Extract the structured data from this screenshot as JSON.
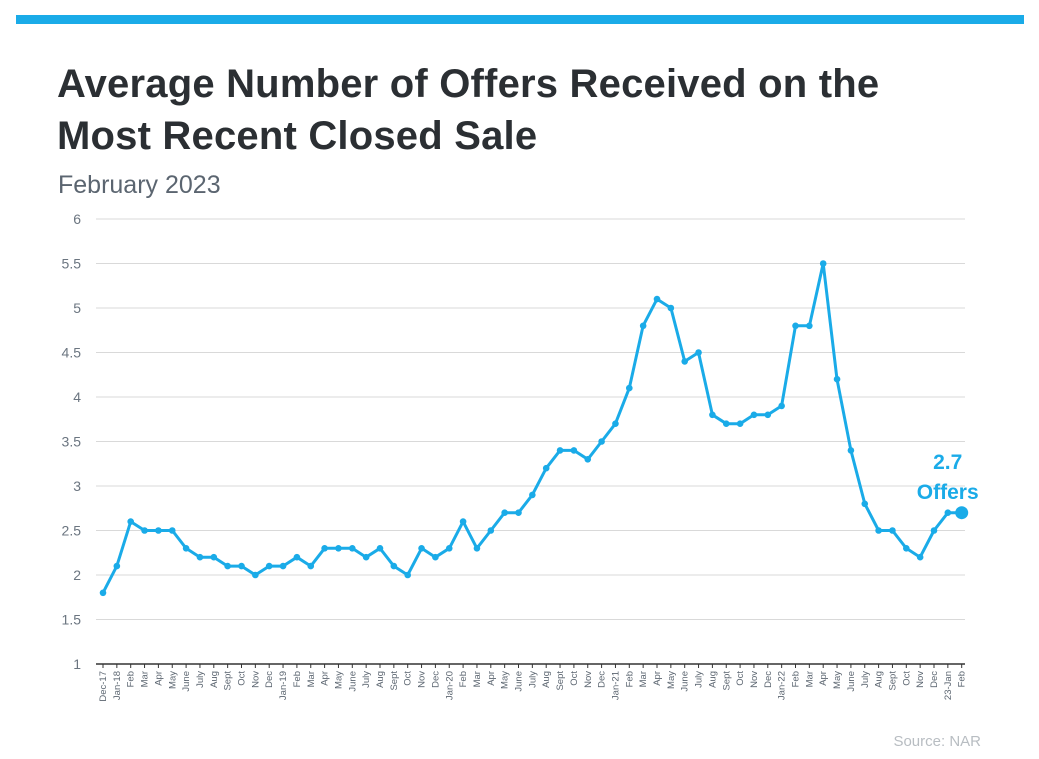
{
  "header": {
    "title": "Average Number of Offers Received on the Most Recent Closed Sale",
    "subtitle": "February 2023"
  },
  "footer": {
    "source": "Source: NAR"
  },
  "colors": {
    "accent": "#1aabe8",
    "title": "#2b2f33",
    "grid": "#d9d9d9",
    "axis": "#333333"
  },
  "chart_data": {
    "type": "line",
    "title": "Average Number of Offers Received on the Most Recent Closed Sale",
    "subtitle": "February 2023",
    "xlabel": "",
    "ylabel": "",
    "ylim": [
      1,
      6
    ],
    "yticks": [
      1,
      1.5,
      2,
      2.5,
      3,
      3.5,
      4,
      4.5,
      5,
      5.5,
      6
    ],
    "grid": true,
    "categories": [
      "Dec-17",
      "Jan-18",
      "Feb",
      "Mar",
      "Apr",
      "May",
      "June",
      "July",
      "Aug",
      "Sept",
      "Oct",
      "Nov",
      "Dec",
      "Jan-19",
      "Feb",
      "Mar",
      "Apr",
      "May",
      "June",
      "July",
      "Aug",
      "Sept",
      "Oct",
      "Nov",
      "Dec",
      "Jan-20",
      "Feb",
      "Mar",
      "Apr",
      "May",
      "June",
      "July",
      "Aug",
      "Sept",
      "Oct",
      "Nov",
      "Dec",
      "Jan-21",
      "Feb",
      "Mar",
      "Apr",
      "May",
      "June",
      "July",
      "Aug",
      "Sept",
      "Oct",
      "Nov",
      "Dec",
      "Jan-22",
      "Feb",
      "Mar",
      "Apr",
      "May",
      "June",
      "July",
      "Aug",
      "Sept",
      "Oct",
      "Nov",
      "Dec",
      "23-Jan",
      "Feb"
    ],
    "series": [
      {
        "values": [
          1.8,
          2.1,
          2.6,
          2.5,
          2.5,
          2.5,
          2.3,
          2.2,
          2.2,
          2.1,
          2.1,
          2.0,
          2.1,
          2.1,
          2.2,
          2.1,
          2.3,
          2.3,
          2.3,
          2.2,
          2.3,
          2.1,
          2.0,
          2.3,
          2.2,
          2.3,
          2.6,
          2.3,
          2.5,
          2.7,
          2.7,
          2.9,
          3.2,
          3.4,
          3.4,
          3.3,
          3.5,
          3.7,
          4.1,
          4.8,
          5.1,
          5.0,
          4.4,
          4.5,
          3.8,
          3.7,
          3.7,
          3.8,
          3.8,
          3.9,
          4.8,
          4.8,
          5.5,
          4.2,
          3.4,
          2.8,
          2.5,
          2.5,
          2.3,
          2.2,
          2.5,
          2.7,
          2.7
        ]
      }
    ],
    "annotations": [
      {
        "value_label": "2.7",
        "unit_label": "Offers",
        "x_index": 62
      }
    ]
  }
}
